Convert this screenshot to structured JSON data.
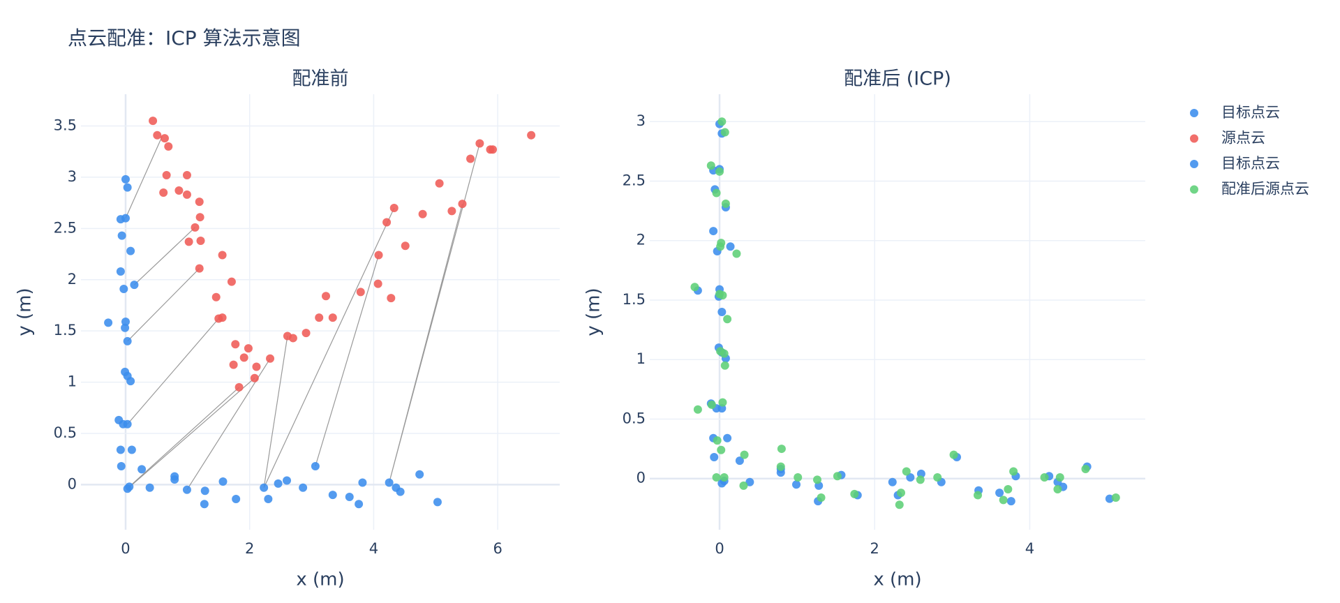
{
  "title": "点云配准：ICP 算法示意图",
  "chart_data": [
    {
      "type": "scatter",
      "title": "配准前",
      "xlabel": "x (m)",
      "ylabel": "y (m)",
      "xlim": [
        -0.72,
        7.0
      ],
      "ylim": [
        -0.44,
        3.81
      ],
      "xticks": [
        0,
        2,
        4,
        6
      ],
      "yticks": [
        0,
        0.5,
        1,
        1.5,
        2,
        2.5,
        3,
        3.5
      ],
      "grid": true,
      "series": [
        {
          "name": "目标点云",
          "color": "#3b8ded",
          "x": [
            0,
            0.03,
            -0.08,
            0,
            -0.06,
            0.08,
            -0.08,
            0.14,
            -0.03,
            -0.28,
            0,
            -0.01,
            0.03,
            -0.01,
            0.03,
            0.08,
            -0.11,
            -0.04,
            0.03,
            -0.08,
            0.1,
            -0.07,
            0.26,
            0.06,
            0.03,
            0.39,
            0.79,
            0.79,
            0.99,
            1.28,
            1.27,
            1.57,
            1.78,
            2.23,
            2.3,
            2.46,
            2.6,
            2.86,
            3.06,
            3.34,
            3.61,
            3.76,
            3.82,
            4.25,
            4.36,
            4.43,
            4.74,
            5.03
          ],
          "values": [
            2.98,
            2.9,
            2.59,
            2.6,
            2.43,
            2.28,
            2.08,
            1.95,
            1.91,
            1.58,
            1.59,
            1.53,
            1.4,
            1.1,
            1.06,
            1.01,
            0.63,
            0.59,
            0.59,
            0.34,
            0.34,
            0.18,
            0.15,
            -0.02,
            -0.04,
            -0.03,
            0.08,
            0.05,
            -0.05,
            -0.06,
            -0.19,
            0.03,
            -0.14,
            -0.03,
            -0.14,
            0.01,
            0.04,
            -0.03,
            0.18,
            -0.1,
            -0.12,
            -0.19,
            0.02,
            0.02,
            -0.03,
            -0.07,
            0.1,
            -0.17
          ]
        },
        {
          "name": "源点云",
          "color": "#ef5b57",
          "x": [
            0.44,
            0.51,
            0.63,
            0.69,
            0.66,
            0.99,
            0.61,
            0.86,
            0.99,
            1.19,
            1.2,
            1.12,
            1.02,
            1.21,
            1.56,
            1.19,
            1.71,
            1.46,
            1.5,
            1.56,
            1.77,
            1.98,
            1.91,
            1.74,
            2.11,
            2.08,
            1.83,
            2.33,
            2.61,
            2.7,
            2.91,
            3.12,
            3.34,
            3.23,
            3.79,
            4.07,
            4.28,
            4.08,
            4.51,
            4.21,
            4.33,
            4.79,
            5.26,
            5.43,
            5.06,
            5.56,
            5.71,
            5.88,
            5.92,
            6.54
          ],
          "values": [
            3.55,
            3.41,
            3.38,
            3.3,
            3.02,
            3.02,
            2.85,
            2.87,
            2.83,
            2.76,
            2.61,
            2.51,
            2.37,
            2.38,
            2.24,
            2.11,
            1.98,
            1.83,
            1.62,
            1.63,
            1.37,
            1.33,
            1.24,
            1.17,
            1.15,
            1.04,
            0.95,
            1.23,
            1.45,
            1.43,
            1.48,
            1.63,
            1.63,
            1.84,
            1.88,
            1.96,
            1.82,
            2.24,
            2.33,
            2.56,
            2.7,
            2.64,
            2.67,
            2.74,
            2.94,
            3.18,
            3.33,
            3.27,
            3.27,
            3.41
          ]
        }
      ],
      "links": {
        "color": "#999999",
        "x": [
          0.59,
          0,
          null,
          1.12,
          0.14,
          null,
          1.19,
          0.03,
          null,
          1.5,
          0.03,
          null,
          1.83,
          0.06,
          null,
          2.08,
          0.03,
          null,
          2.33,
          0.99,
          null,
          2.61,
          2.23,
          null,
          4.33,
          2.23,
          null,
          4.08,
          3.06,
          null,
          5.71,
          4.25,
          null,
          5.43,
          4.25
        ],
        "y": [
          3.4,
          2.6,
          null,
          2.51,
          1.95,
          null,
          2.11,
          1.4,
          null,
          1.62,
          0.59,
          null,
          0.95,
          -0.02,
          null,
          1.04,
          -0.04,
          null,
          1.23,
          -0.05,
          null,
          1.45,
          -0.03,
          null,
          2.7,
          -0.03,
          null,
          2.24,
          0.18,
          null,
          3.33,
          0.02,
          null,
          2.74,
          0.02
        ]
      }
    },
    {
      "type": "scatter",
      "title": "配准后 (ICP)",
      "xlabel": "x (m)",
      "ylabel": "y (m)",
      "xlim": [
        -0.9,
        5.49
      ],
      "ylim": [
        -0.43,
        3.23
      ],
      "xticks": [
        0,
        2,
        4
      ],
      "yticks": [
        0,
        0.5,
        1,
        1.5,
        2,
        2.5,
        3
      ],
      "grid": true,
      "series": [
        {
          "name": "目标点云",
          "color": "#3b8ded",
          "x": [
            0,
            0.03,
            -0.08,
            0,
            -0.06,
            0.08,
            -0.08,
            0.14,
            -0.03,
            -0.28,
            0,
            -0.01,
            0.03,
            -0.01,
            0.03,
            0.08,
            -0.11,
            -0.04,
            0.03,
            -0.08,
            0.1,
            -0.07,
            0.26,
            0.06,
            0.03,
            0.39,
            0.79,
            0.79,
            0.99,
            1.28,
            1.27,
            1.57,
            1.78,
            2.23,
            2.3,
            2.46,
            2.6,
            2.86,
            3.06,
            3.34,
            3.61,
            3.76,
            3.82,
            4.25,
            4.36,
            4.43,
            4.74,
            5.03
          ],
          "values": [
            2.98,
            2.9,
            2.59,
            2.6,
            2.43,
            2.28,
            2.08,
            1.95,
            1.91,
            1.58,
            1.59,
            1.53,
            1.4,
            1.1,
            1.06,
            1.01,
            0.63,
            0.59,
            0.59,
            0.34,
            0.34,
            0.18,
            0.15,
            -0.02,
            -0.04,
            -0.03,
            0.08,
            0.05,
            -0.05,
            -0.06,
            -0.19,
            0.03,
            -0.14,
            -0.03,
            -0.14,
            0.01,
            0.04,
            -0.03,
            0.18,
            -0.1,
            -0.12,
            -0.19,
            0.02,
            0.02,
            -0.03,
            -0.07,
            0.1,
            -0.17
          ]
        },
        {
          "name": "配准后源点云",
          "color": "#5dcf76",
          "x": [
            0.03,
            0.07,
            -0.11,
            0,
            -0.04,
            0.08,
            0.01,
            0.22,
            0.02,
            -0.32,
            0,
            0.04,
            0.1,
            0.01,
            0.06,
            0.07,
            -0.28,
            -0.1,
            0.04,
            -0.03,
            0.02,
            -0.04,
            0.06,
            0.32,
            0.31,
            0.8,
            0.79,
            1.01,
            1.26,
            1.31,
            1.52,
            1.74,
            2.34,
            2.32,
            2.41,
            2.59,
            2.81,
            3.02,
            3.33,
            3.66,
            3.72,
            3.79,
            4.19,
            4.39,
            4.36,
            4.72,
            5.11
          ],
          "values": [
            3.0,
            2.91,
            2.63,
            2.58,
            2.4,
            2.31,
            1.95,
            1.89,
            1.98,
            1.61,
            1.55,
            1.54,
            1.34,
            1.07,
            1.05,
            0.95,
            0.58,
            0.62,
            0.64,
            0.32,
            0.24,
            0.01,
            0.01,
            0.2,
            -0.06,
            0.25,
            0.1,
            0.01,
            -0.01,
            -0.16,
            0.02,
            -0.13,
            -0.12,
            -0.22,
            0.06,
            -0.01,
            0.01,
            0.2,
            -0.14,
            -0.18,
            -0.09,
            0.06,
            0.01,
            0.01,
            -0.09,
            0.08,
            -0.16
          ]
        }
      ]
    }
  ]
}
